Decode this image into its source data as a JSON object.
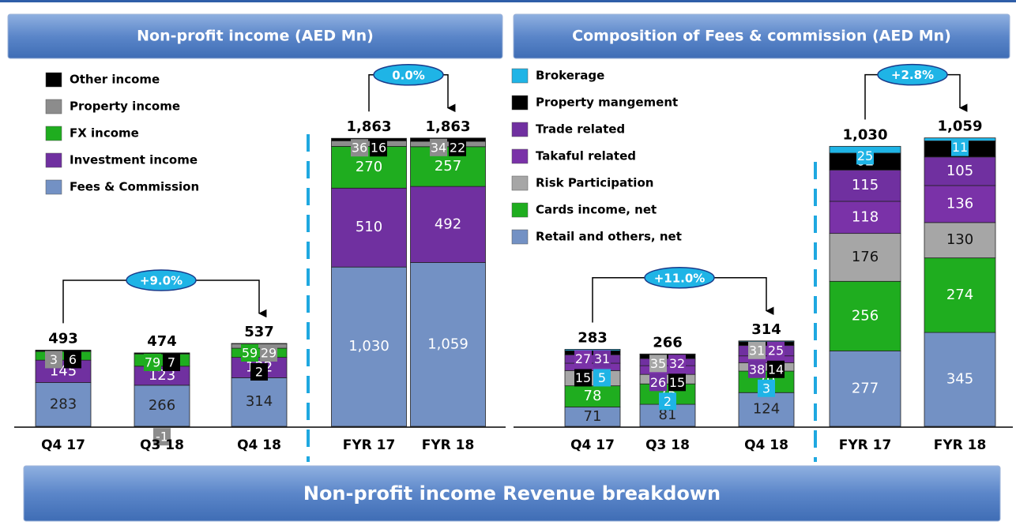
{
  "banner": "Non-profit income Revenue breakdown",
  "chart_data": [
    {
      "type": "bar",
      "stacked": true,
      "title": "Non-profit income (AED Mn)",
      "categories": [
        "Q4 17",
        "Q3 18",
        "Q4 18",
        "FYR 17",
        "FYR 18"
      ],
      "series": [
        {
          "name": "Fees & Commission",
          "color": "#7391c4",
          "values": [
            283,
            266,
            314,
            1030,
            1059
          ],
          "value_labels": [
            "283",
            "266",
            "314",
            "1,030",
            "1,059"
          ]
        },
        {
          "name": "Investment income",
          "color": "#7030a0",
          "values": [
            145,
            123,
            132,
            510,
            492
          ]
        },
        {
          "name": "FX income",
          "color": "#1fad1f",
          "values": [
            56,
            79,
            59,
            270,
            257
          ],
          "value_labels": [
            null,
            "79",
            "59",
            "270",
            "257"
          ]
        },
        {
          "name": "Property income",
          "color": "#8c8c8c",
          "values": [
            3,
            -1,
            29,
            36,
            34
          ]
        },
        {
          "name": "Other income",
          "color": "#000000",
          "values": [
            6,
            7,
            2,
            16,
            22
          ]
        }
      ],
      "totals": [
        493,
        474,
        537,
        1863,
        1863
      ],
      "total_labels": [
        "493",
        "474",
        "537",
        "1,863",
        "1,863"
      ],
      "annotations": [
        {
          "text": "+9.0%",
          "from": "Q4 17",
          "to": "Q4 18"
        },
        {
          "text": "0.0%",
          "from": "FYR 17",
          "to": "FYR 18"
        }
      ]
    },
    {
      "type": "bar",
      "stacked": true,
      "title": "Composition of Fees & commission (AED Mn)",
      "categories": [
        "Q4 17",
        "Q3 18",
        "Q4 18",
        "FYR 17",
        "FYR 18"
      ],
      "series": [
        {
          "name": "Retail and others, net",
          "color": "#7391c4",
          "values": [
            71,
            81,
            124,
            277,
            345
          ]
        },
        {
          "name": "Cards income, net",
          "color": "#1fad1f",
          "values": [
            78,
            75,
            79,
            256,
            274
          ]
        },
        {
          "name": "Risk Participation",
          "color": "#a6a6a6",
          "values": [
            56,
            35,
            31,
            176,
            130
          ]
        },
        {
          "name": "Takaful related",
          "color": "#7a32a8",
          "values": [
            27,
            32,
            25,
            118,
            136
          ]
        },
        {
          "name": "Trade related",
          "color": "#7030a0",
          "values": [
            31,
            26,
            38,
            115,
            105
          ]
        },
        {
          "name": "Property mangement",
          "color": "#000000",
          "values": [
            15,
            15,
            14,
            62,
            59
          ]
        },
        {
          "name": "Brokerage",
          "color": "#1fb4e6",
          "values": [
            5,
            2,
            3,
            25,
            11
          ]
        }
      ],
      "totals": [
        283,
        266,
        314,
        1030,
        1059
      ],
      "total_labels": [
        "283",
        "266",
        "314",
        "1,030",
        "1,059"
      ],
      "annotations": [
        {
          "text": "+11.0%",
          "from": "Q4 17",
          "to": "Q4 18"
        },
        {
          "text": "+2.8%",
          "from": "FYR 17",
          "to": "FYR 18"
        }
      ]
    }
  ]
}
